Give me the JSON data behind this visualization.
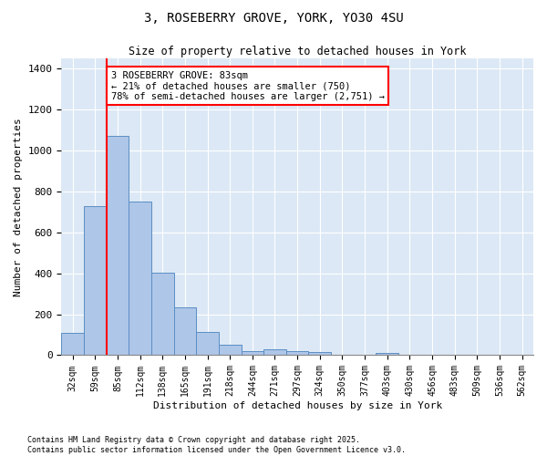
{
  "title_line1": "3, ROSEBERRY GROVE, YORK, YO30 4SU",
  "title_line2": "Size of property relative to detached houses in York",
  "xlabel": "Distribution of detached houses by size in York",
  "ylabel": "Number of detached properties",
  "bar_categories": [
    "32sqm",
    "59sqm",
    "85sqm",
    "112sqm",
    "138sqm",
    "165sqm",
    "191sqm",
    "218sqm",
    "244sqm",
    "271sqm",
    "297sqm",
    "324sqm",
    "350sqm",
    "377sqm",
    "403sqm",
    "430sqm",
    "456sqm",
    "483sqm",
    "509sqm",
    "536sqm",
    "562sqm"
  ],
  "bar_values": [
    110,
    730,
    1070,
    750,
    405,
    235,
    115,
    50,
    20,
    28,
    20,
    15,
    0,
    0,
    12,
    0,
    0,
    0,
    0,
    0,
    0
  ],
  "bar_color": "#aec6e8",
  "bar_edge_color": "#5b8ec4",
  "red_line_index": 2,
  "annotation_text": "3 ROSEBERRY GROVE: 83sqm\n← 21% of detached houses are smaller (750)\n78% of semi-detached houses are larger (2,751) →",
  "annotation_box_color": "white",
  "annotation_box_edge_color": "red",
  "ylim": [
    0,
    1450
  ],
  "yticks": [
    0,
    200,
    400,
    600,
    800,
    1000,
    1200,
    1400
  ],
  "background_color": "#dce8f5",
  "grid_color": "white",
  "footer_line1": "Contains HM Land Registry data © Crown copyright and database right 2025.",
  "footer_line2": "Contains public sector information licensed under the Open Government Licence v3.0."
}
